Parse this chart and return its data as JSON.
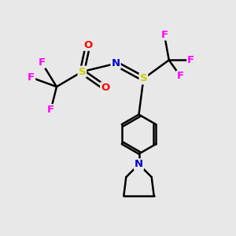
{
  "bg_color": "#e8e8e8",
  "atom_colors": {
    "C": "#000000",
    "N": "#0000cc",
    "O": "#ff0000",
    "S": "#cccc00",
    "F": "#ff00ff"
  },
  "bond_color": "#000000",
  "figsize": [
    3.0,
    3.0
  ],
  "dpi": 100,
  "lw": 1.8
}
